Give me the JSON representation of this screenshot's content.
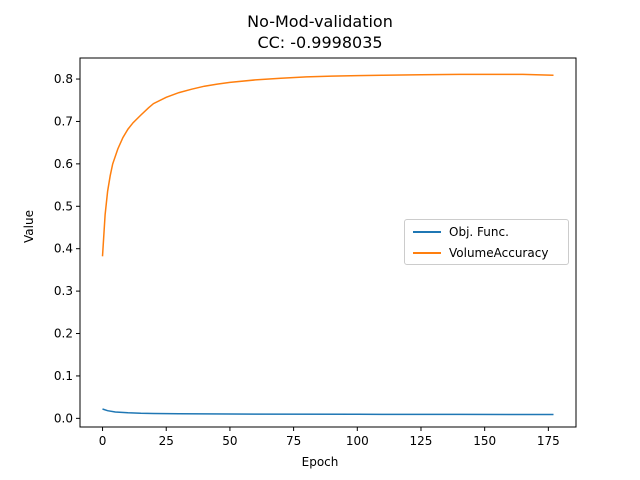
{
  "chart_data": {
    "type": "line",
    "title": "No-Mod-validation",
    "subtitle": "CC: -0.9998035",
    "xlabel": "Epoch",
    "ylabel": "Value",
    "xlim": [
      -8.85,
      185.85
    ],
    "ylim": [
      -0.0204,
      0.8496
    ],
    "xticks": [
      0,
      25,
      50,
      75,
      100,
      125,
      150,
      175
    ],
    "yticks": [
      0.0,
      0.1,
      0.2,
      0.3,
      0.4,
      0.5,
      0.6,
      0.7,
      0.8
    ],
    "ytick_labels": [
      "0.0",
      "0.1",
      "0.2",
      "0.3",
      "0.4",
      "0.5",
      "0.6",
      "0.7",
      "0.8"
    ],
    "grid": false,
    "legend_position": "center-right",
    "series": [
      {
        "name": "Obj. Func.",
        "color": "#1f77b4",
        "points": [
          [
            0,
            0.022
          ],
          [
            2,
            0.018
          ],
          [
            5,
            0.015
          ],
          [
            10,
            0.013
          ],
          [
            15,
            0.012
          ],
          [
            20,
            0.0115
          ],
          [
            30,
            0.011
          ],
          [
            40,
            0.0105
          ],
          [
            60,
            0.01
          ],
          [
            100,
            0.0095
          ],
          [
            140,
            0.0092
          ],
          [
            177,
            0.009
          ]
        ]
      },
      {
        "name": "VolumeAccuracy",
        "color": "#ff7f0e",
        "points": [
          [
            0,
            0.382
          ],
          [
            1,
            0.48
          ],
          [
            2,
            0.535
          ],
          [
            3,
            0.572
          ],
          [
            4,
            0.6
          ],
          [
            6,
            0.635
          ],
          [
            8,
            0.662
          ],
          [
            10,
            0.682
          ],
          [
            12,
            0.697
          ],
          [
            15,
            0.715
          ],
          [
            18,
            0.732
          ],
          [
            20,
            0.742
          ],
          [
            25,
            0.757
          ],
          [
            30,
            0.768
          ],
          [
            35,
            0.776
          ],
          [
            40,
            0.783
          ],
          [
            45,
            0.788
          ],
          [
            50,
            0.792
          ],
          [
            60,
            0.798
          ],
          [
            70,
            0.802
          ],
          [
            80,
            0.805
          ],
          [
            90,
            0.807
          ],
          [
            100,
            0.808
          ],
          [
            110,
            0.809
          ],
          [
            125,
            0.81
          ],
          [
            140,
            0.811
          ],
          [
            155,
            0.811
          ],
          [
            165,
            0.811
          ],
          [
            177,
            0.809
          ]
        ]
      }
    ]
  }
}
